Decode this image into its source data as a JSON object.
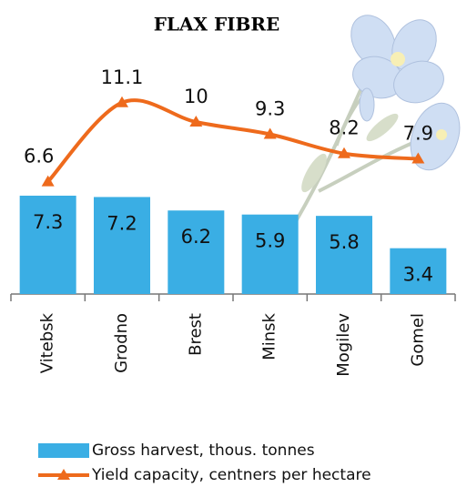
{
  "chart_data": {
    "type": "combo",
    "title": "FLAX FIBRE",
    "categories": [
      "Vitebsk",
      "Grodno",
      "Brest",
      "Minsk",
      "Mogilev",
      "Gomel"
    ],
    "series": [
      {
        "name": "Gross harvest, thous. tonnes",
        "type": "bar",
        "color": "#3aaee4",
        "values": [
          7.3,
          7.2,
          6.2,
          5.9,
          5.8,
          3.4
        ]
      },
      {
        "name": "Yield capacity, centners per hectare",
        "type": "line",
        "color": "#ee6a1c",
        "values": [
          6.6,
          11.1,
          10.0,
          9.3,
          8.2,
          7.9
        ]
      }
    ]
  }
}
